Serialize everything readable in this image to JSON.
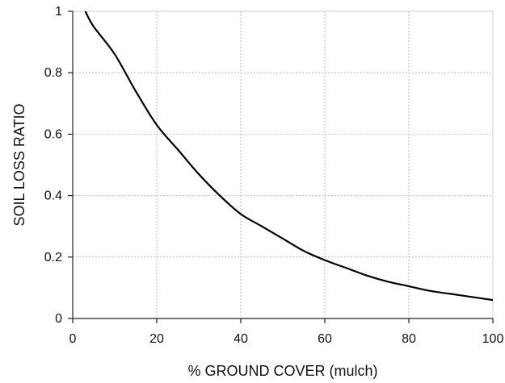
{
  "chart_data": {
    "type": "line",
    "title": "",
    "xlabel": "% GROUND COVER (mulch)",
    "ylabel": "SOIL LOSS RATIO",
    "xlim": [
      0,
      100
    ],
    "ylim": [
      0,
      1
    ],
    "x_ticks": [
      0,
      20,
      40,
      60,
      80,
      100
    ],
    "y_ticks": [
      0,
      0.2,
      0.4,
      0.6,
      0.8,
      1
    ],
    "y_tick_labels": [
      "0",
      "0.2",
      "0.4",
      "0.6",
      "0.8",
      "1"
    ],
    "grid": true,
    "series": [
      {
        "x": [
          3,
          5,
          10,
          15,
          20,
          25,
          30,
          35,
          40,
          45,
          50,
          55,
          60,
          65,
          70,
          75,
          80,
          85,
          90,
          95,
          100
        ],
        "y": [
          1.0,
          0.95,
          0.86,
          0.74,
          0.63,
          0.55,
          0.47,
          0.4,
          0.34,
          0.3,
          0.26,
          0.22,
          0.19,
          0.165,
          0.14,
          0.12,
          0.105,
          0.09,
          0.08,
          0.07,
          0.06
        ]
      }
    ]
  },
  "colors": {
    "series": "#000000",
    "grid": "#bdbdbd",
    "axis": "#222222"
  }
}
